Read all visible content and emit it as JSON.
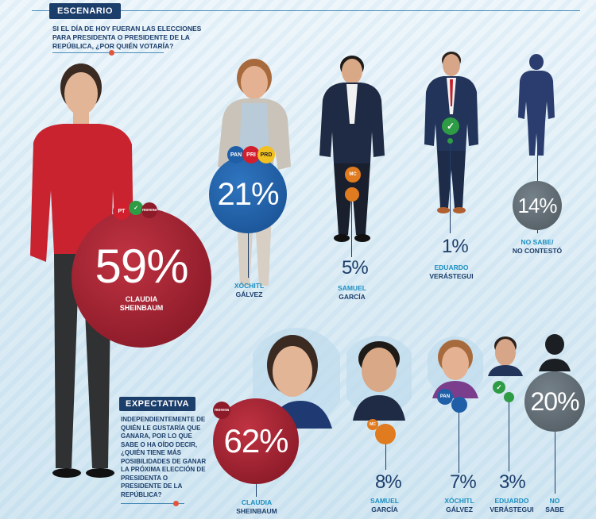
{
  "sections": {
    "escenario": {
      "tag": "ESCENARIO",
      "question": "SI EL DÍA DE HOY FUERAN LAS ELECCIONES PARA PRESIDENTA O PRESIDENTE DE LA REPÚBLICA, ¿POR QUIÉN VOTARÍA?"
    },
    "expectativa": {
      "tag": "EXPECTATIVA",
      "question": "INDEPENDIENTEMENTE DE QUIÉN LE GUSTARÍA QUE GANARA, POR LO QUE SABE O HA OÍDO DECIR, ¿QUIÉN TIENE MÁS POSIBILIDADES DE GANAR LA PRÓXIMA ELECCIÓN DE PRESIDENTA O PRESIDENTE DE LA REPÚBLICA?"
    }
  },
  "logos": {
    "pt": "PT",
    "pan": "PAN",
    "pri": "PRI",
    "prd": "PRD",
    "morena": "morena",
    "mc": "MC"
  },
  "colors": {
    "morena": "#8e1b2a",
    "pan": "#1f5fa8",
    "mc": "#e07b1f",
    "verde": "#2e9b45",
    "grey": "#5f6b72",
    "navy": "#1c3e6b"
  },
  "chart_data": [
    {
      "type": "bubble",
      "title": "ESCENARIO",
      "subtitle": "SI EL DÍA DE HOY FUERAN LAS ELECCIONES PARA PRESIDENTA O PRESIDENTE DE LA REPÚBLICA, ¿POR QUIÉN VOTARÍA?",
      "categories": [
        "Claudia Sheinbaum",
        "Xóchitl Gálvez",
        "Samuel García",
        "Eduardo Verástegui",
        "No sabe/No contestó"
      ],
      "values": [
        59,
        21,
        5,
        1,
        14
      ],
      "labels": [
        "59%",
        "21%",
        "5%",
        "1%",
        "14%"
      ],
      "names": [
        [
          "CLAUDIA",
          "SHEINBAUM"
        ],
        [
          "XÓCHITL",
          "GÁLVEZ"
        ],
        [
          "SAMUEL",
          "GARCÍA"
        ],
        [
          "EDUARDO",
          "VERÁSTEGUI"
        ],
        [
          "NO SABE/",
          "NO CONTESTÓ"
        ]
      ]
    },
    {
      "type": "bubble",
      "title": "EXPECTATIVA",
      "subtitle": "INDEPENDIENTEMENTE DE QUIÉN LE GUSTARÍA QUE GANARA, POR LO QUE SABE O HA OÍDO DECIR, ¿QUIÉN TIENE MÁS POSIBILIDADES DE GANAR LA PRÓXIMA ELECCIÓN DE PRESIDENTA O PRESIDENTE DE LA REPÚBLICA?",
      "categories": [
        "Claudia Sheinbaum",
        "Samuel García",
        "Xóchitl Gálvez",
        "Eduardo Verástegui",
        "No sabe"
      ],
      "values": [
        62,
        8,
        7,
        3,
        20
      ],
      "labels": [
        "62%",
        "8%",
        "7%",
        "3%",
        "20%"
      ],
      "names": [
        [
          "CLAUDIA",
          "SHEINBAUM"
        ],
        [
          "SAMUEL",
          "GARCÍA"
        ],
        [
          "XÓCHITL",
          "GÁLVEZ"
        ],
        [
          "EDUARDO",
          "VERÁSTEGUI"
        ],
        [
          "NO",
          "SABE"
        ]
      ]
    }
  ]
}
